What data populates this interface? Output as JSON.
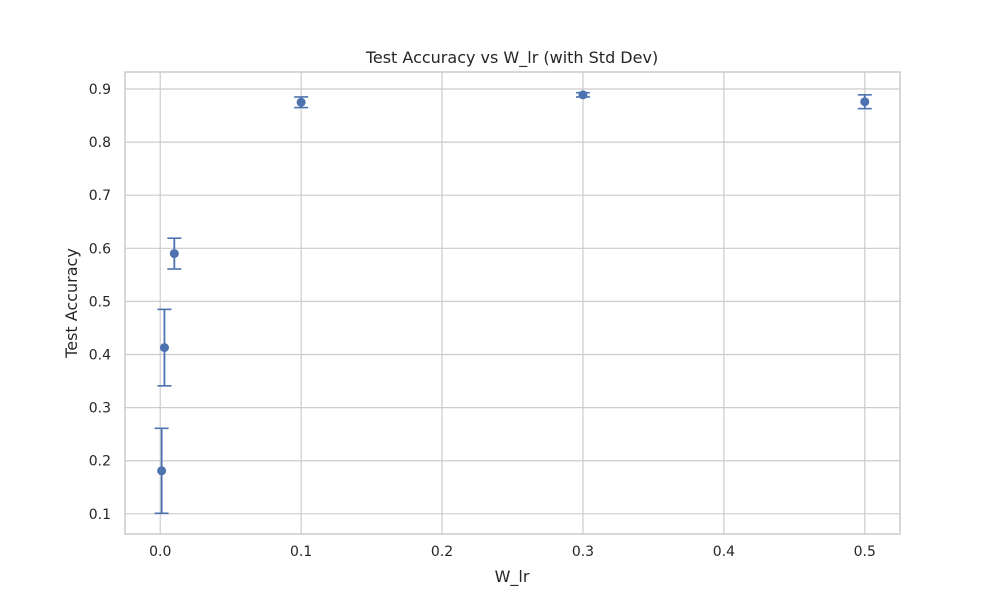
{
  "chart_data": {
    "type": "scatter",
    "title": "Test Accuracy vs W_lr (with Std Dev)",
    "xlabel": "W_lr",
    "ylabel": "Test Accuracy",
    "xlim": [
      -0.025,
      0.525
    ],
    "ylim": [
      0.062,
      0.932
    ],
    "xticks": [
      0.0,
      0.1,
      0.2,
      0.3,
      0.4,
      0.5
    ],
    "xtick_labels": [
      "0.0",
      "0.1",
      "0.2",
      "0.3",
      "0.4",
      "0.5"
    ],
    "yticks": [
      0.1,
      0.2,
      0.3,
      0.4,
      0.5,
      0.6,
      0.7,
      0.8,
      0.9
    ],
    "ytick_labels": [
      "0.1",
      "0.2",
      "0.3",
      "0.4",
      "0.5",
      "0.6",
      "0.7",
      "0.8",
      "0.9"
    ],
    "grid": true,
    "points": [
      {
        "x": 0.001,
        "y": 0.181,
        "err": 0.08
      },
      {
        "x": 0.003,
        "y": 0.413,
        "err": 0.072
      },
      {
        "x": 0.01,
        "y": 0.59,
        "err": 0.029
      },
      {
        "x": 0.1,
        "y": 0.875,
        "err": 0.01
      },
      {
        "x": 0.3,
        "y": 0.889,
        "err": 0.004
      },
      {
        "x": 0.5,
        "y": 0.876,
        "err": 0.013
      }
    ],
    "colors": {
      "series": "#4c72b0",
      "grid": "#cccccc",
      "frame": "#cccccc",
      "text": "#262626"
    }
  }
}
